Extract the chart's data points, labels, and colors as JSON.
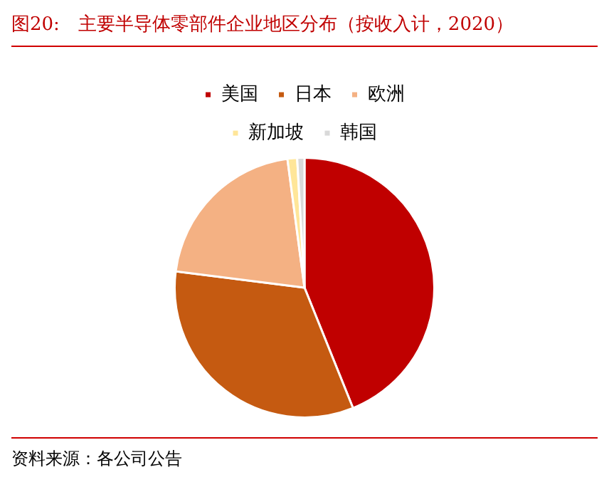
{
  "chart_data": {
    "type": "pie",
    "title": "图20:　主要半导体零部件企业地区分布（按收入计，2020）",
    "categories": [
      "美国",
      "日本",
      "欧洲",
      "新加坡",
      "韩国"
    ],
    "values": [
      43.9,
      33.1,
      20.9,
      1.2,
      0.9
    ],
    "colors": [
      "#c00000",
      "#c55a11",
      "#f4b183",
      "#ffe699",
      "#d9d9d9"
    ],
    "legend": "top",
    "annotations": [
      "资料来源：各公司公告"
    ]
  }
}
